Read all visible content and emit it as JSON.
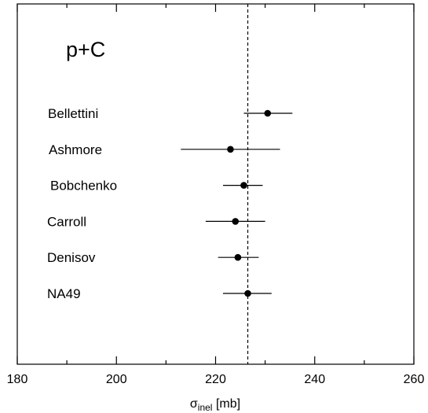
{
  "chart_data": {
    "type": "scatter",
    "panel_label": "p+C",
    "xlabel_symbol": "σ",
    "xlabel_subscript": "inel",
    "xlabel_unit": "[mb]",
    "xlim": [
      180,
      260
    ],
    "x_ticks": [
      180,
      200,
      220,
      240,
      260
    ],
    "x_tick_labels": [
      "180",
      "200",
      "220",
      "240",
      "260"
    ],
    "reference_line": 226.5,
    "grid": false,
    "series": [
      {
        "points": [
          {
            "label": "Bellettini",
            "x": 230.5,
            "xerr_low": 225.7,
            "xerr_high": 235.5
          },
          {
            "label": "Ashmore",
            "x": 223.0,
            "xerr_low": 213.0,
            "xerr_high": 233.0
          },
          {
            "label": "Bobchenko",
            "x": 225.7,
            "xerr_low": 221.5,
            "xerr_high": 229.5
          },
          {
            "label": "Carroll",
            "x": 224.0,
            "xerr_low": 218.0,
            "xerr_high": 230.0
          },
          {
            "label": "Denisov",
            "x": 224.5,
            "xerr_low": 220.5,
            "xerr_high": 228.7
          },
          {
            "label": "NA49",
            "x": 226.5,
            "xerr_low": 221.5,
            "xerr_high": 231.3
          }
        ]
      }
    ]
  }
}
